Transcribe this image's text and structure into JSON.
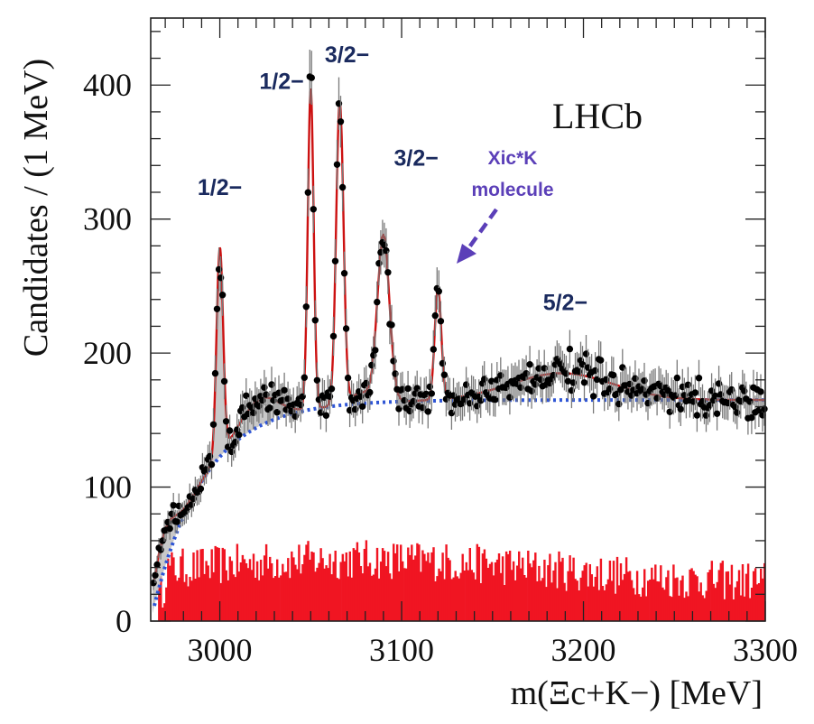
{
  "chart_data": {
    "type": "scatter",
    "brand": "LHCb",
    "xlabel": "m(Ξc+K−) [MeV]",
    "ylabel": "Candidates / (1 MeV)",
    "xlim": [
      2962,
      3300
    ],
    "ylim": [
      0,
      450
    ],
    "x_ticks": [
      3000,
      3100,
      3200,
      3300
    ],
    "y_ticks": [
      0,
      100,
      200,
      300,
      400
    ],
    "grid": false,
    "colors": {
      "data": "#000000",
      "error_bar": "#7a7a7a",
      "fit": "#cc1111",
      "background": "#2f55d4",
      "sideband": "#f01522",
      "shaded": "#c0c0c0",
      "annotation": "#5b3fb8",
      "spin_label": "#1a2a5e"
    },
    "peaks": [
      {
        "mass": 3000,
        "height": 285
      },
      {
        "mass": 3050,
        "height": 405
      },
      {
        "mass": 3066,
        "height": 395
      },
      {
        "mass": 3090,
        "height": 295
      },
      {
        "mass": 3120,
        "height": 255
      }
    ],
    "broad_structure": {
      "mass": 3188,
      "height": 185
    },
    "annotations": [
      {
        "text": "1/2−",
        "x": 3000,
        "y": 318
      },
      {
        "text": "1/2−",
        "x": 3034,
        "y": 397
      },
      {
        "text": "3/2−",
        "x": 3070,
        "y": 417
      },
      {
        "text": "3/2−",
        "x": 3108,
        "y": 340
      },
      {
        "text": "5/2−",
        "x": 3190,
        "y": 232
      }
    ],
    "molecule_label": {
      "lines": [
        "Xic*K",
        "molecule"
      ],
      "x": 3154,
      "y": 318
    }
  }
}
